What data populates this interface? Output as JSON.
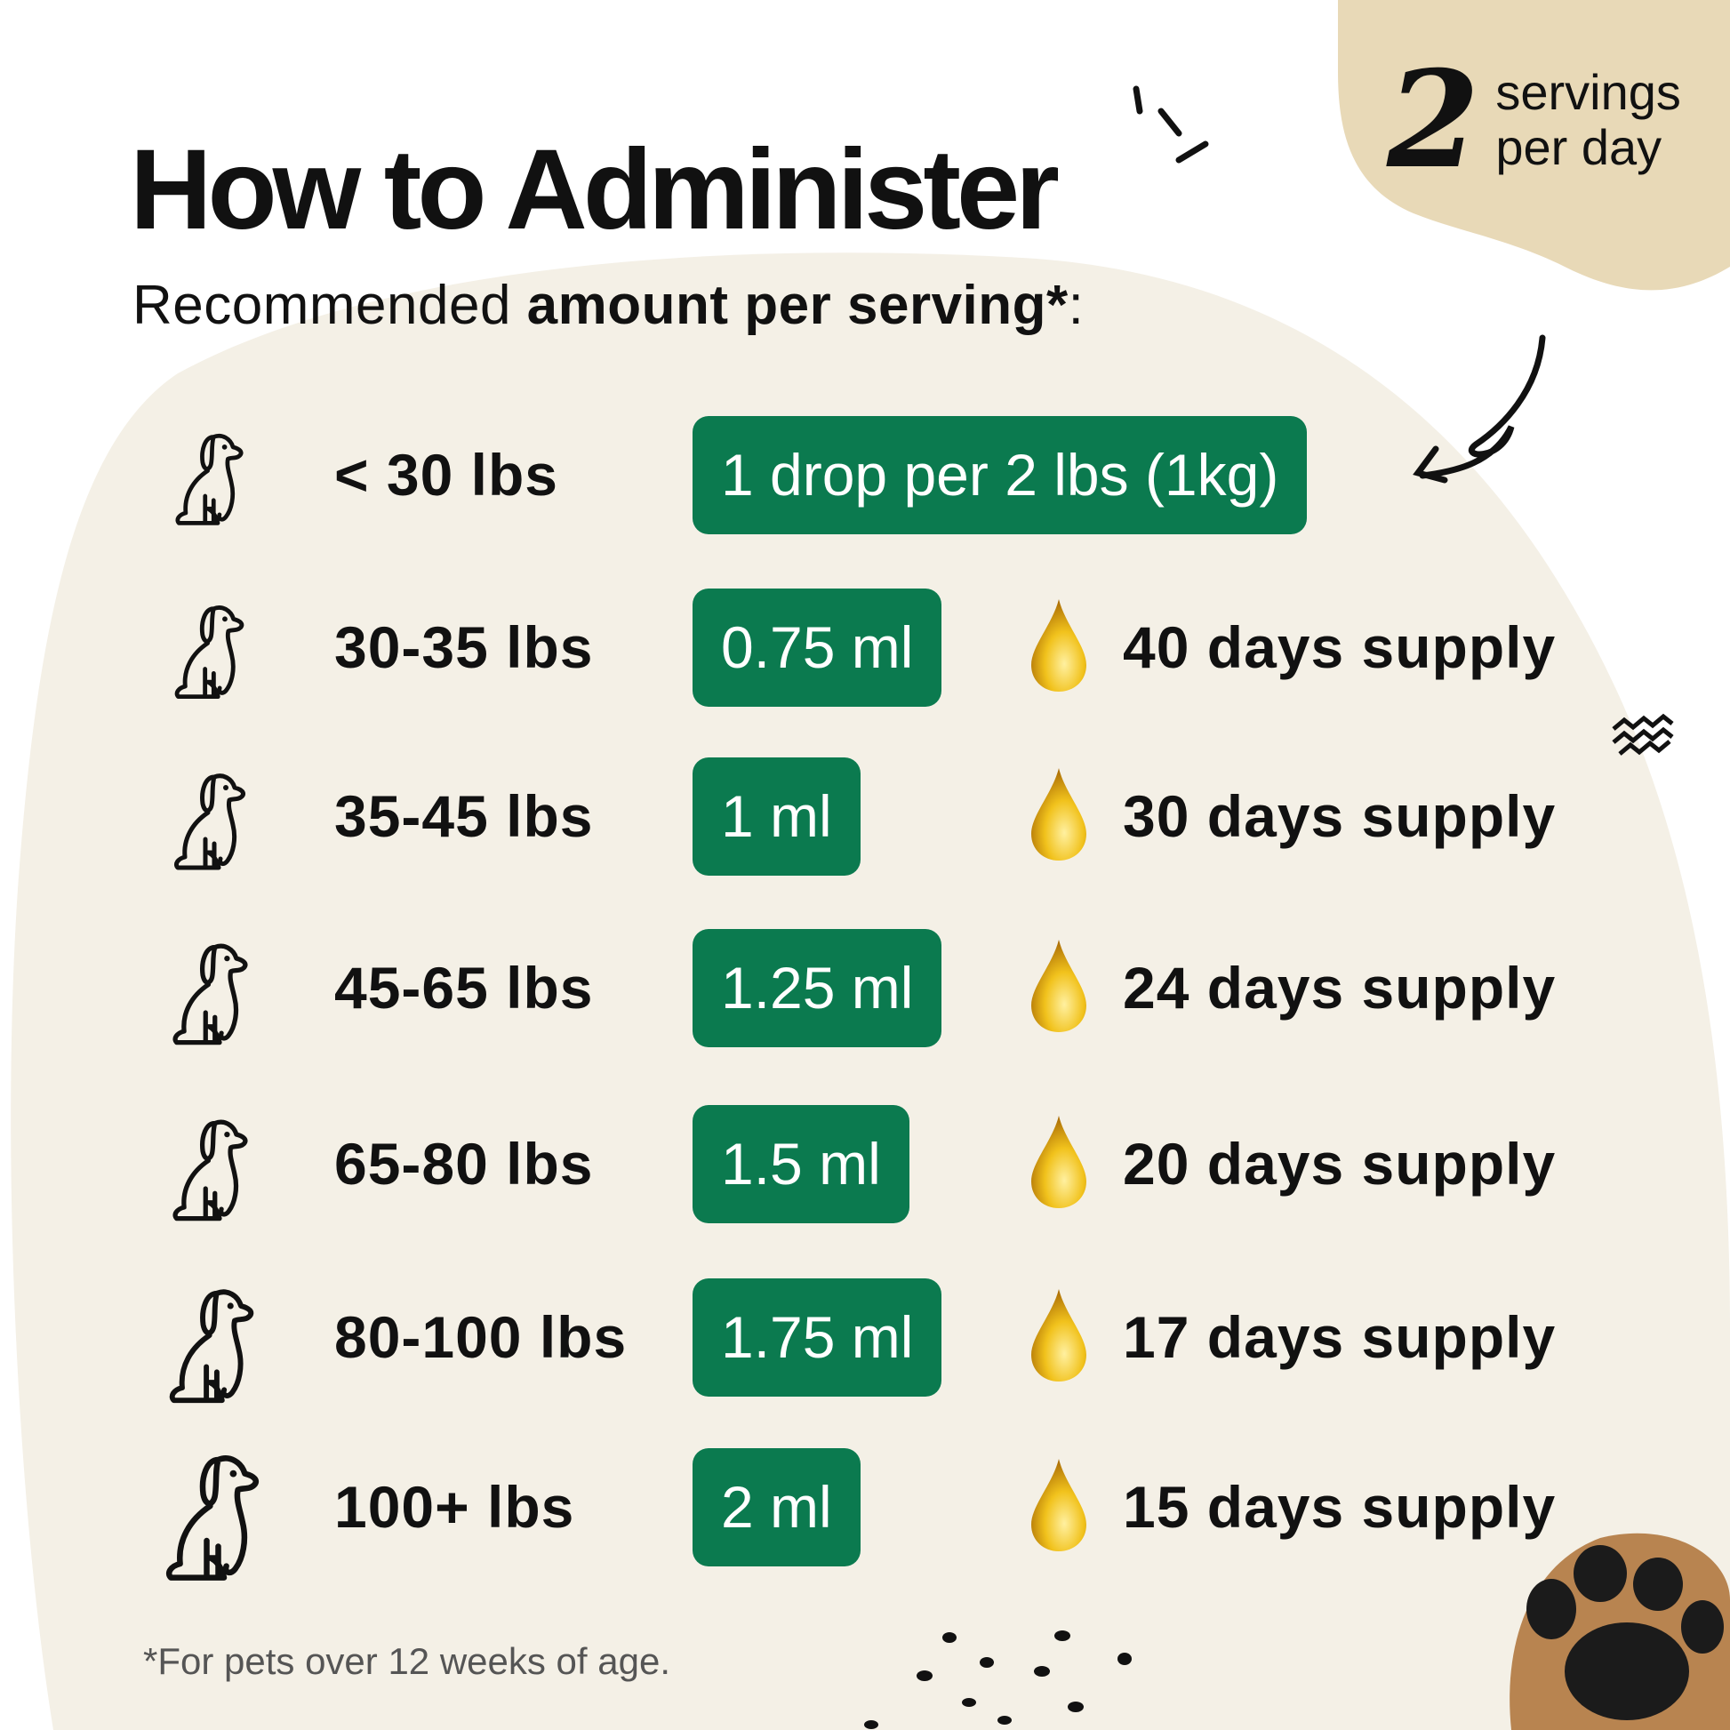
{
  "title": "How to Administer",
  "subtitle": {
    "regular": "Recommended ",
    "bold": "amount per serving*",
    "suffix": ":"
  },
  "badge": {
    "number": "2",
    "line1": "servings",
    "line2": "per day"
  },
  "colors": {
    "pill": "#0b7a4f",
    "cream": "#f4f0e6",
    "tan": "#e8d9b7",
    "drop": "#e8b00c"
  },
  "rows": [
    {
      "weight": "< 30 lbs",
      "amount": "1 drop per 2 lbs (1kg)",
      "supply": ""
    },
    {
      "weight": "30-35 lbs",
      "amount": "0.75 ml",
      "supply": "40 days supply"
    },
    {
      "weight": "35-45 lbs",
      "amount": "1 ml",
      "supply": "30 days supply"
    },
    {
      "weight": "45-65 lbs",
      "amount": "1.25 ml",
      "supply": "24 days supply"
    },
    {
      "weight": "65-80 lbs",
      "amount": "1.5 ml",
      "supply": "20 days supply"
    },
    {
      "weight": "80-100 lbs",
      "amount": "1.75 ml",
      "supply": "17 days supply"
    },
    {
      "weight": "100+ lbs",
      "amount": "2 ml",
      "supply": "15 days supply"
    }
  ],
  "footnote": "*For pets over 12 weeks of age."
}
